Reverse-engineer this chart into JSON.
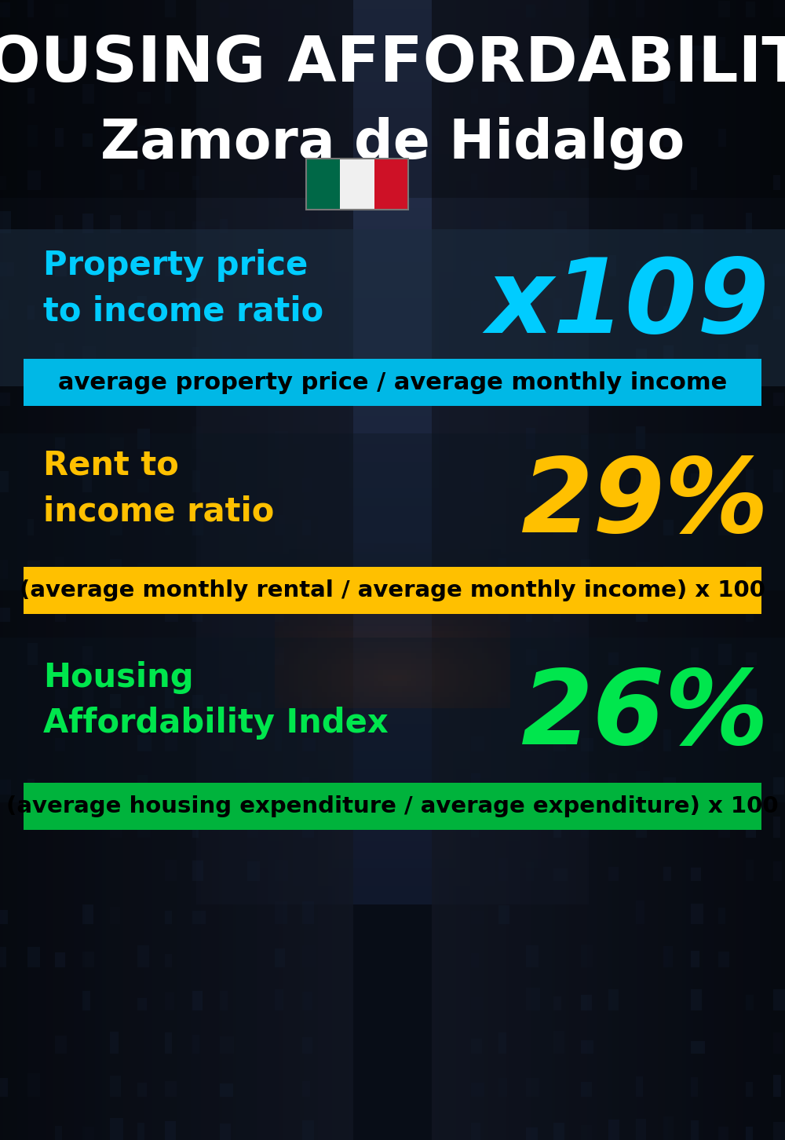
{
  "title_line1": "HOUSING AFFORDABILITY",
  "title_line2": "Zamora de Hidalgo",
  "bg_color": "#0a0f1a",
  "section1_label": "Property price\nto income ratio",
  "section1_value": "x109",
  "section1_label_color": "#00ccff",
  "section1_value_color": "#00ccff",
  "section1_banner_text": "average property price / average monthly income",
  "section1_banner_bg": "#00b8e6",
  "section2_label": "Rent to\nincome ratio",
  "section2_value": "29%",
  "section2_label_color": "#ffc000",
  "section2_value_color": "#ffc000",
  "section2_banner_text": "(average monthly rental / average monthly income) x 100",
  "section2_banner_bg": "#ffc000",
  "section3_label": "Housing\nAffordability Index",
  "section3_value": "26%",
  "section3_label_color": "#00e64d",
  "section3_value_color": "#00e64d",
  "section3_banner_text": "(average housing expenditure / average expenditure) x 100",
  "section3_banner_bg": "#00b33c",
  "flag_green": "#006847",
  "flag_white": "#f0f0f0",
  "flag_red": "#ce1126",
  "title_color": "#ffffff"
}
